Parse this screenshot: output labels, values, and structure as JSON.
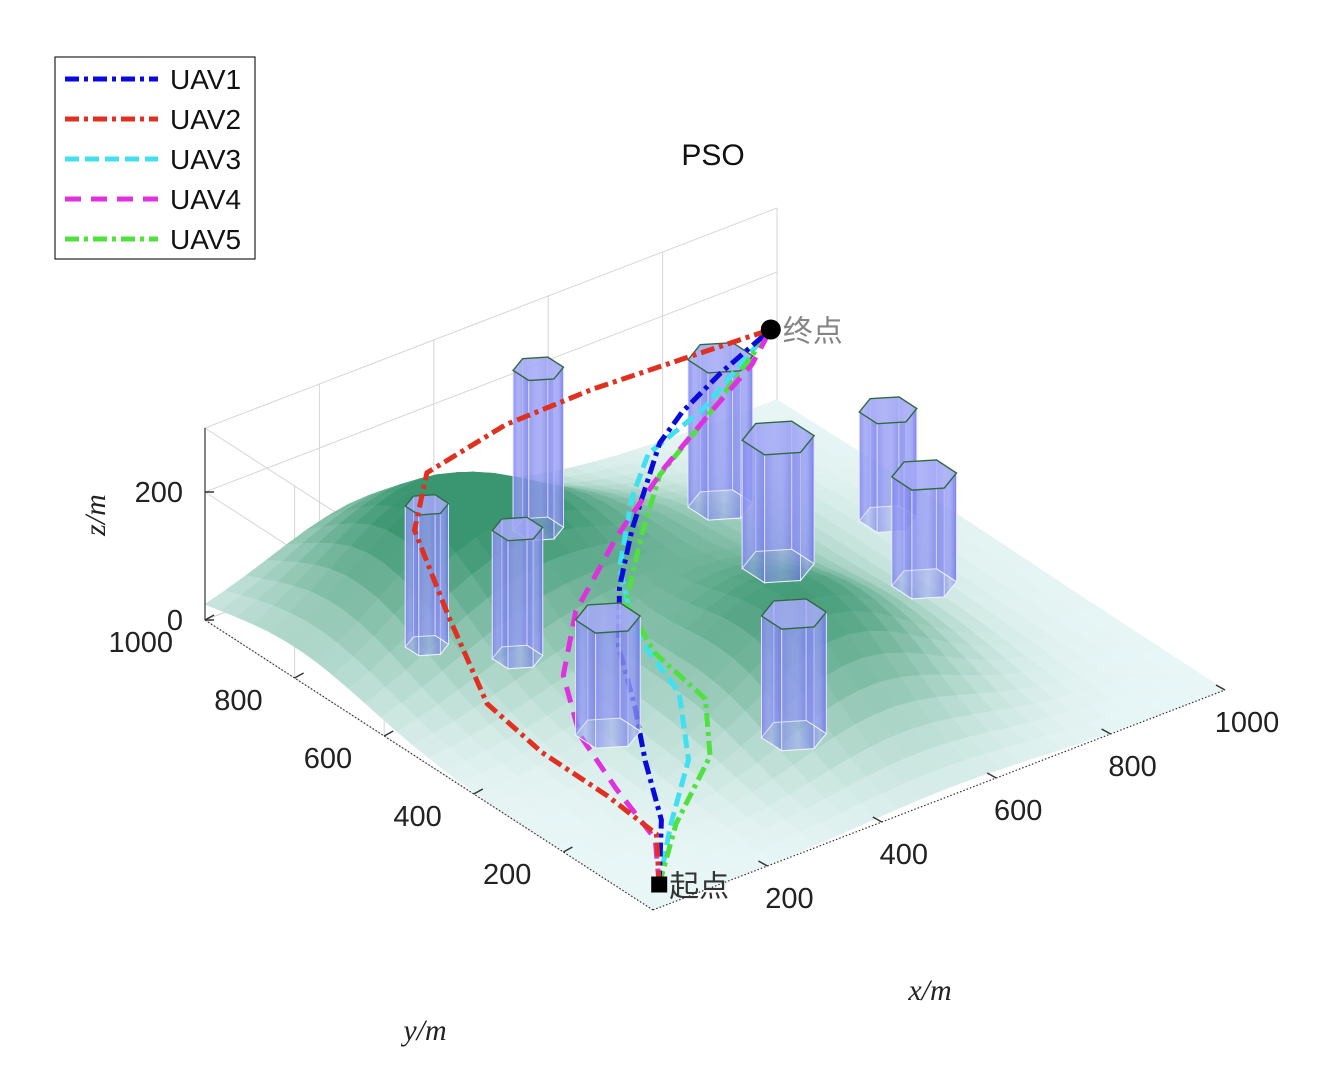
{
  "chart_data": {
    "type": "line3d",
    "title": "PSO",
    "xlabel": "x/m",
    "ylabel": "y/m",
    "zlabel": "z/m",
    "xlim": [
      0,
      1000
    ],
    "ylim": [
      0,
      1000
    ],
    "zlim": [
      0,
      300
    ],
    "x_ticks": [
      "200",
      "400",
      "600",
      "800",
      "1000"
    ],
    "y_ticks": [
      "200",
      "400",
      "600",
      "800",
      "1000"
    ],
    "z_ticks": [
      "0",
      "200"
    ],
    "grid": true,
    "legend_position": "top-left",
    "start": {
      "label": "起点",
      "x": 50,
      "y": 50,
      "z": 0
    },
    "goal": {
      "label": "终点",
      "x": 950,
      "y": 950,
      "z": 150
    },
    "series": [
      {
        "name": "UAV1",
        "color": "#0a0adc",
        "dash": "14,5,4,5",
        "points": [
          [
            50,
            50,
            0
          ],
          [
            140,
            160,
            20
          ],
          [
            190,
            260,
            50
          ],
          [
            250,
            360,
            70
          ],
          [
            300,
            460,
            100
          ],
          [
            380,
            560,
            120
          ],
          [
            480,
            660,
            130
          ],
          [
            560,
            700,
            220
          ],
          [
            670,
            790,
            190
          ],
          [
            800,
            870,
            170
          ],
          [
            950,
            950,
            150
          ]
        ]
      },
      {
        "name": "UAV2",
        "color": "#e03020",
        "dash": "14,5,4,5",
        "points": [
          [
            50,
            50,
            0
          ],
          [
            100,
            120,
            30
          ],
          [
            100,
            230,
            40
          ],
          [
            80,
            350,
            60
          ],
          [
            70,
            460,
            90
          ],
          [
            80,
            560,
            180
          ],
          [
            100,
            660,
            260
          ],
          [
            200,
            760,
            270
          ],
          [
            400,
            840,
            240
          ],
          [
            600,
            900,
            200
          ],
          [
            950,
            950,
            150
          ]
        ]
      },
      {
        "name": "UAV3",
        "color": "#40e0f0",
        "dash": "14,6",
        "points": [
          [
            50,
            50,
            0
          ],
          [
            140,
            140,
            20
          ],
          [
            250,
            240,
            40
          ],
          [
            320,
            350,
            70
          ],
          [
            330,
            460,
            110
          ],
          [
            380,
            560,
            150
          ],
          [
            480,
            660,
            180
          ],
          [
            540,
            700,
            210
          ],
          [
            700,
            780,
            190
          ],
          [
            850,
            880,
            170
          ],
          [
            950,
            950,
            150
          ]
        ]
      },
      {
        "name": "UAV4",
        "color": "#e030e0",
        "dash": "16,10",
        "points": [
          [
            50,
            50,
            0
          ],
          [
            90,
            110,
            30
          ],
          [
            100,
            210,
            60
          ],
          [
            130,
            330,
            80
          ],
          [
            180,
            430,
            110
          ],
          [
            280,
            530,
            130
          ],
          [
            430,
            630,
            150
          ],
          [
            600,
            740,
            150
          ],
          [
            760,
            830,
            150
          ],
          [
            870,
            890,
            150
          ],
          [
            950,
            950,
            150
          ]
        ]
      },
      {
        "name": "UAV5",
        "color": "#50e040",
        "dash": "14,5,4,5",
        "points": [
          [
            50,
            50,
            0
          ],
          [
            150,
            140,
            20
          ],
          [
            280,
            230,
            40
          ],
          [
            350,
            330,
            60
          ],
          [
            340,
            430,
            90
          ],
          [
            360,
            520,
            120
          ],
          [
            450,
            600,
            160
          ],
          [
            560,
            700,
            170
          ],
          [
            700,
            780,
            170
          ],
          [
            850,
            880,
            160
          ],
          [
            950,
            950,
            150
          ]
        ]
      }
    ],
    "obstacles": [
      {
        "x": 520,
        "y": 920,
        "r": 35,
        "h": 250
      },
      {
        "x": 760,
        "y": 820,
        "r": 45,
        "h": 230
      },
      {
        "x": 720,
        "y": 640,
        "r": 50,
        "h": 200
      },
      {
        "x": 920,
        "y": 650,
        "r": 40,
        "h": 170
      },
      {
        "x": 850,
        "y": 480,
        "r": 45,
        "h": 170
      },
      {
        "x": 280,
        "y": 660,
        "r": 35,
        "h": 200
      },
      {
        "x": 200,
        "y": 760,
        "r": 30,
        "h": 220
      },
      {
        "x": 250,
        "y": 420,
        "r": 45,
        "h": 180
      },
      {
        "x": 450,
        "y": 260,
        "r": 45,
        "h": 190
      }
    ],
    "terrain_peaks": [
      {
        "x": 280,
        "y": 800,
        "h": 190,
        "s": 170
      },
      {
        "x": 520,
        "y": 330,
        "h": 150,
        "s": 150
      },
      {
        "x": 600,
        "y": 660,
        "h": 60,
        "s": 170
      }
    ]
  }
}
